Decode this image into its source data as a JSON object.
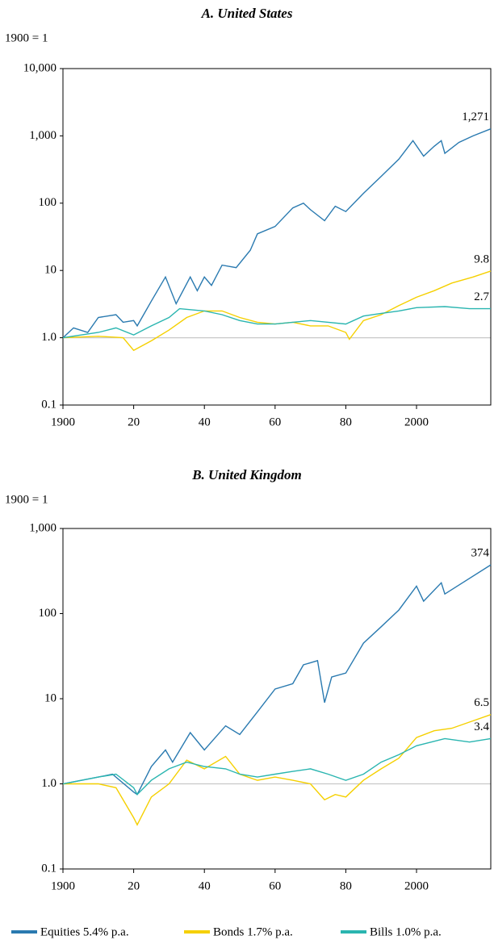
{
  "chart_data": [
    {
      "type": "line",
      "title": "A. United States",
      "y_label": "1900 = 1",
      "log_y": true,
      "reference_line": 1,
      "xlim": [
        1900,
        2021
      ],
      "xticks": [
        {
          "value": 1900,
          "label": "1900"
        },
        {
          "value": 1920,
          "label": "20"
        },
        {
          "value": 1940,
          "label": "40"
        },
        {
          "value": 1960,
          "label": "60"
        },
        {
          "value": 1980,
          "label": "80"
        },
        {
          "value": 2000,
          "label": "2000"
        }
      ],
      "ylim": [
        0.1,
        10000
      ],
      "yticks": [
        0.1,
        {
          "value": 1,
          "label": "1.0"
        },
        10,
        100,
        {
          "value": 1000,
          "label": "1,000"
        },
        {
          "value": 10000,
          "label": "10,000"
        }
      ],
      "series": [
        {
          "name": "Equities 5.4% p.a.",
          "color": "#2a7ab0",
          "end_label": "1,271",
          "x": [
            1900,
            1903,
            1907,
            1910,
            1915,
            1917,
            1920,
            1921,
            1925,
            1929,
            1932,
            1936,
            1938,
            1940,
            1942,
            1945,
            1949,
            1953,
            1955,
            1960,
            1965,
            1968,
            1970,
            1974,
            1977,
            1980,
            1985,
            1990,
            1995,
            1999,
            2002,
            2005,
            2007,
            2008,
            2012,
            2016,
            2021
          ],
          "values": [
            1,
            1.4,
            1.2,
            2,
            2.2,
            1.7,
            1.8,
            1.5,
            3.5,
            8,
            3.2,
            8,
            5,
            8,
            6,
            12,
            11,
            20,
            35,
            45,
            85,
            100,
            80,
            55,
            90,
            75,
            140,
            250,
            450,
            850,
            500,
            700,
            850,
            550,
            800,
            1000,
            1271
          ]
        },
        {
          "name": "Bonds 1.7% p.a.",
          "color": "#f5d000",
          "end_label": "9.8",
          "x": [
            1900,
            1910,
            1917,
            1920,
            1925,
            1930,
            1935,
            1940,
            1945,
            1950,
            1955,
            1960,
            1965,
            1970,
            1975,
            1980,
            1981,
            1985,
            1990,
            1995,
            2000,
            2005,
            2010,
            2016,
            2021
          ],
          "values": [
            1,
            1.05,
            1.0,
            0.65,
            0.9,
            1.3,
            2.0,
            2.5,
            2.5,
            2.0,
            1.7,
            1.6,
            1.7,
            1.5,
            1.5,
            1.2,
            0.95,
            1.8,
            2.2,
            3.0,
            4.0,
            5.0,
            6.5,
            8,
            9.8
          ]
        },
        {
          "name": "Bills 1.0% p.a.",
          "color": "#2ab5b0",
          "end_label": "2.7",
          "x": [
            1900,
            1910,
            1915,
            1920,
            1925,
            1930,
            1933,
            1940,
            1945,
            1950,
            1955,
            1960,
            1965,
            1970,
            1975,
            1980,
            1985,
            1990,
            1995,
            2000,
            2008,
            2015,
            2021
          ],
          "values": [
            1,
            1.2,
            1.4,
            1.1,
            1.5,
            2.0,
            2.7,
            2.5,
            2.2,
            1.8,
            1.6,
            1.6,
            1.7,
            1.8,
            1.7,
            1.6,
            2.1,
            2.3,
            2.5,
            2.8,
            2.9,
            2.7,
            2.7
          ]
        }
      ]
    },
    {
      "type": "line",
      "title": "B. United Kingdom",
      "y_label": "1900 = 1",
      "log_y": true,
      "reference_line": 1,
      "xlim": [
        1900,
        2021
      ],
      "xticks": [
        {
          "value": 1900,
          "label": "1900"
        },
        {
          "value": 1920,
          "label": "20"
        },
        {
          "value": 1940,
          "label": "40"
        },
        {
          "value": 1960,
          "label": "60"
        },
        {
          "value": 1980,
          "label": "80"
        },
        {
          "value": 2000,
          "label": "2000"
        }
      ],
      "ylim": [
        0.1,
        1000
      ],
      "yticks": [
        0.1,
        {
          "value": 1,
          "label": "1.0"
        },
        10,
        100,
        {
          "value": 1000,
          "label": "1,000"
        }
      ],
      "series": [
        {
          "color": "#2a7ab0",
          "end_label": "374",
          "x": [
            1900,
            1910,
            1914,
            1920,
            1921,
            1925,
            1929,
            1931,
            1936,
            1940,
            1946,
            1950,
            1955,
            1960,
            1965,
            1968,
            1972,
            1974,
            1976,
            1980,
            1985,
            1990,
            1995,
            2000,
            2002,
            2007,
            2008,
            2013,
            2021
          ],
          "values": [
            1,
            1.2,
            1.3,
            0.8,
            0.75,
            1.6,
            2.5,
            1.8,
            4,
            2.5,
            4.8,
            3.8,
            7,
            13,
            15,
            25,
            28,
            9,
            18,
            20,
            45,
            70,
            110,
            210,
            140,
            230,
            170,
            230,
            374
          ]
        },
        {
          "color": "#f5d000",
          "end_label": "6.5",
          "x": [
            1900,
            1910,
            1915,
            1920,
            1921,
            1925,
            1930,
            1935,
            1940,
            1946,
            1950,
            1955,
            1960,
            1965,
            1970,
            1974,
            1977,
            1980,
            1985,
            1990,
            1995,
            2000,
            2005,
            2010,
            2016,
            2021
          ],
          "values": [
            1,
            1.0,
            0.9,
            0.4,
            0.33,
            0.7,
            1.0,
            1.9,
            1.5,
            2.1,
            1.3,
            1.1,
            1.2,
            1.1,
            1.0,
            0.65,
            0.75,
            0.7,
            1.1,
            1.5,
            2.0,
            3.5,
            4.2,
            4.5,
            5.5,
            6.5
          ]
        },
        {
          "color": "#2ab5b0",
          "end_label": "3.4",
          "x": [
            1900,
            1910,
            1915,
            1920,
            1921,
            1925,
            1930,
            1935,
            1940,
            1946,
            1950,
            1955,
            1960,
            1965,
            1970,
            1975,
            1980,
            1985,
            1990,
            1995,
            2000,
            2008,
            2015,
            2021
          ],
          "values": [
            1,
            1.2,
            1.3,
            0.9,
            0.75,
            1.1,
            1.5,
            1.8,
            1.6,
            1.5,
            1.3,
            1.2,
            1.3,
            1.4,
            1.5,
            1.3,
            1.1,
            1.3,
            1.8,
            2.2,
            2.8,
            3.4,
            3.1,
            3.4
          ]
        }
      ]
    }
  ]
}
